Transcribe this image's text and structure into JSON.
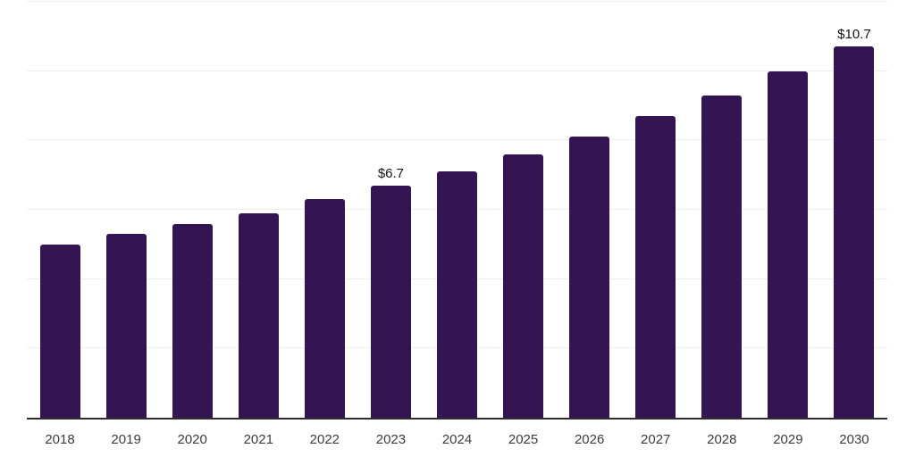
{
  "chart_data": {
    "type": "bar",
    "title": "",
    "xlabel": "",
    "ylabel": "",
    "categories": [
      "2018",
      "2019",
      "2020",
      "2021",
      "2022",
      "2023",
      "2024",
      "2025",
      "2026",
      "2027",
      "2028",
      "2029",
      "2030"
    ],
    "values": [
      5.0,
      5.3,
      5.6,
      5.9,
      6.3,
      6.7,
      7.1,
      7.6,
      8.1,
      8.7,
      9.3,
      10.0,
      10.7
    ],
    "value_unit_prefix": "$",
    "labeled_points": [
      {
        "category": "2023",
        "label": "$6.7"
      },
      {
        "category": "2030",
        "label": "$10.7"
      }
    ],
    "ylim": [
      0,
      12
    ],
    "gridline_step": 2,
    "grid": true,
    "legend": "none",
    "y_axis_tick_labels": "none",
    "colors": {
      "bar": "#341452",
      "axis_line": "#2e2e2e",
      "gridline": "#efefef",
      "x_label_text": "#3c3c3c",
      "value_label_text": "#121212",
      "background": "#ffffff"
    }
  }
}
